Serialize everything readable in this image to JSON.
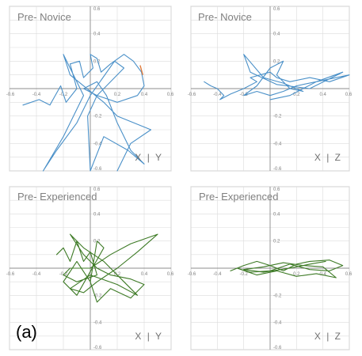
{
  "figure_label": "(a)",
  "colors": {
    "novice": "#4a90c8",
    "experienced": "#3d7a25",
    "novice_accent": "#e07a3a",
    "grid": "#dcdcdc",
    "axis": "#8c8c8c",
    "border": "#c8c8c8"
  },
  "chart_data": [
    {
      "type": "line",
      "title": "Pre- Novice",
      "plane_label": "X | Y",
      "xlim": [
        -0.6,
        0.6
      ],
      "ylim": [
        -0.6,
        0.6
      ],
      "xticks": [
        "-0.6",
        "-0.4",
        "-0.2",
        "0.2",
        "0.4",
        "0.6"
      ],
      "yticks": [
        "0.6",
        "0.4",
        "0.2",
        "-0.2",
        "-0.4",
        "-0.6"
      ],
      "grid": true,
      "series": [
        {
          "color": "#4a90c8",
          "points": [
            [
              -0.5,
              -0.12
            ],
            [
              -0.38,
              -0.08
            ],
            [
              -0.3,
              -0.12
            ],
            [
              -0.22,
              0.02
            ],
            [
              -0.18,
              -0.1
            ],
            [
              -0.1,
              0.0
            ],
            [
              -0.15,
              0.18
            ],
            [
              -0.08,
              0.2
            ],
            [
              -0.05,
              0.08
            ],
            [
              0.02,
              0.15
            ],
            [
              0.0,
              0.25
            ],
            [
              0.05,
              0.22
            ],
            [
              0.08,
              0.12
            ],
            [
              0.15,
              0.18
            ],
            [
              0.25,
              0.25
            ],
            [
              0.32,
              0.2
            ],
            [
              0.38,
              0.12
            ],
            [
              0.4,
              0.02
            ],
            [
              0.35,
              -0.05
            ],
            [
              0.2,
              -0.1
            ],
            [
              0.05,
              -0.05
            ],
            [
              -0.05,
              0.0
            ],
            [
              0.05,
              0.05
            ],
            [
              0.12,
              -0.05
            ],
            [
              0.2,
              -0.25
            ],
            [
              0.3,
              -0.45
            ],
            [
              0.4,
              -0.55
            ],
            [
              0.28,
              -0.45
            ],
            [
              0.1,
              -0.35
            ],
            [
              0.0,
              -0.6
            ],
            [
              -0.02,
              -0.2
            ],
            [
              0.05,
              -0.05
            ],
            [
              0.25,
              0.15
            ],
            [
              0.18,
              0.2
            ],
            [
              0.0,
              -0.05
            ],
            [
              -0.1,
              -0.25
            ],
            [
              -0.25,
              -0.45
            ],
            [
              -0.35,
              -0.6
            ],
            [
              -0.2,
              -0.35
            ],
            [
              -0.05,
              -0.05
            ],
            [
              -0.2,
              0.25
            ],
            [
              -0.15,
              0.1
            ],
            [
              0.1,
              -0.1
            ],
            [
              0.2,
              -0.2
            ],
            [
              0.45,
              -0.3
            ],
            [
              0.3,
              -0.4
            ],
            [
              0.2,
              -0.6
            ]
          ]
        }
      ]
    },
    {
      "type": "line",
      "title": "Pre- Novice",
      "plane_label": "X | Z",
      "xlim": [
        -0.6,
        0.6
      ],
      "ylim": [
        -0.6,
        0.6
      ],
      "xticks": [
        "-0.6",
        "-0.4",
        "-0.2",
        "0.2",
        "0.4",
        "0.6"
      ],
      "yticks": [
        "0.6",
        "0.4",
        "0.2",
        "-0.2",
        "-0.4",
        "-0.6"
      ],
      "grid": true,
      "series": [
        {
          "color": "#4a90c8",
          "points": [
            [
              -0.5,
              0.05
            ],
            [
              -0.45,
              0.02
            ],
            [
              -0.4,
              0.0
            ],
            [
              -0.35,
              -0.05
            ],
            [
              -0.38,
              -0.08
            ],
            [
              -0.3,
              -0.04
            ],
            [
              -0.2,
              0.0
            ],
            [
              -0.1,
              0.05
            ],
            [
              -0.15,
              0.08
            ],
            [
              0.0,
              0.12
            ],
            [
              0.05,
              0.08
            ],
            [
              0.15,
              0.05
            ],
            [
              0.3,
              0.08
            ],
            [
              0.45,
              0.05
            ],
            [
              0.6,
              0.1
            ],
            [
              0.4,
              0.06
            ],
            [
              0.2,
              0.02
            ],
            [
              0.1,
              -0.02
            ],
            [
              0.0,
              -0.05
            ],
            [
              -0.1,
              -0.02
            ],
            [
              -0.2,
              -0.05
            ],
            [
              -0.1,
              0.02
            ],
            [
              0.0,
              0.15
            ],
            [
              0.1,
              0.2
            ],
            [
              0.05,
              0.1
            ],
            [
              0.15,
              0.0
            ],
            [
              0.25,
              -0.02
            ],
            [
              0.1,
              0.04
            ],
            [
              -0.05,
              0.08
            ],
            [
              -0.2,
              0.25
            ],
            [
              -0.15,
              0.12
            ],
            [
              0.05,
              0.03
            ],
            [
              0.3,
              0.0
            ],
            [
              0.55,
              0.12
            ],
            [
              0.35,
              0.05
            ],
            [
              0.15,
              -0.05
            ],
            [
              0.0,
              -0.08
            ]
          ]
        }
      ]
    },
    {
      "type": "line",
      "title": "Pre- Experienced",
      "plane_label": "X | Y",
      "xlim": [
        -0.6,
        0.6
      ],
      "ylim": [
        -0.6,
        0.6
      ],
      "xticks": [
        "-0.6",
        "-0.4",
        "-0.2",
        "0.2",
        "0.4",
        "0.6"
      ],
      "yticks": [
        "0.6",
        "0.4",
        "0.2",
        "-0.2",
        "-0.4",
        "-0.6"
      ],
      "grid": true,
      "series": [
        {
          "color": "#3d7a25",
          "points": [
            [
              -0.25,
              0.1
            ],
            [
              -0.2,
              0.15
            ],
            [
              -0.15,
              0.05
            ],
            [
              -0.1,
              0.2
            ],
            [
              -0.05,
              0.05
            ],
            [
              0.0,
              0.12
            ],
            [
              0.05,
              -0.05
            ],
            [
              -0.1,
              -0.1
            ],
            [
              -0.2,
              -0.05
            ],
            [
              -0.15,
              0.0
            ],
            [
              0.0,
              0.0
            ],
            [
              0.15,
              0.1
            ],
            [
              0.3,
              0.18
            ],
            [
              0.5,
              0.25
            ],
            [
              0.35,
              0.12
            ],
            [
              0.2,
              0.0
            ],
            [
              0.05,
              -0.1
            ],
            [
              -0.05,
              -0.18
            ],
            [
              -0.15,
              -0.15
            ],
            [
              0.0,
              -0.05
            ],
            [
              0.2,
              -0.12
            ],
            [
              0.35,
              -0.2
            ],
            [
              0.25,
              -0.1
            ],
            [
              0.1,
              0.05
            ],
            [
              -0.05,
              0.15
            ],
            [
              -0.15,
              0.25
            ],
            [
              -0.05,
              0.1
            ],
            [
              0.05,
              0.0
            ],
            [
              0.15,
              -0.05
            ],
            [
              0.3,
              -0.08
            ],
            [
              0.4,
              -0.12
            ],
            [
              0.3,
              -0.22
            ],
            [
              0.15,
              -0.15
            ],
            [
              0.05,
              -0.25
            ],
            [
              0.0,
              -0.1
            ],
            [
              -0.1,
              0.05
            ],
            [
              -0.2,
              -0.1
            ],
            [
              -0.1,
              -0.2
            ],
            [
              0.1,
              0.15
            ],
            [
              0.05,
              0.2
            ],
            [
              0.0,
              -0.1
            ]
          ]
        }
      ]
    },
    {
      "type": "line",
      "title": "Pre- Experienced",
      "plane_label": "X | Z",
      "xlim": [
        -0.6,
        0.6
      ],
      "ylim": [
        -0.6,
        0.6
      ],
      "xticks": [
        "-0.6",
        "-0.4",
        "-0.2",
        "0.2",
        "0.4",
        "0.6"
      ],
      "yticks": [
        "0.6",
        "0.4",
        "0.2",
        "-0.2",
        "-0.4",
        "-0.6"
      ],
      "grid": true,
      "series": [
        {
          "color": "#3d7a25",
          "points": [
            [
              -0.3,
              -0.02
            ],
            [
              -0.2,
              0.02
            ],
            [
              -0.1,
              0.05
            ],
            [
              0.0,
              0.02
            ],
            [
              0.1,
              -0.02
            ],
            [
              0.2,
              0.03
            ],
            [
              0.3,
              0.05
            ],
            [
              0.45,
              0.06
            ],
            [
              0.55,
              0.02
            ],
            [
              0.45,
              -0.02
            ],
            [
              0.3,
              -0.01
            ],
            [
              0.15,
              0.03
            ],
            [
              0.0,
              -0.02
            ],
            [
              -0.15,
              -0.03
            ],
            [
              -0.25,
              0.0
            ],
            [
              -0.1,
              -0.05
            ],
            [
              0.05,
              -0.02
            ],
            [
              0.2,
              -0.06
            ],
            [
              0.35,
              -0.04
            ],
            [
              0.5,
              -0.07
            ],
            [
              0.4,
              0.01
            ],
            [
              0.25,
              0.02
            ],
            [
              0.1,
              0.04
            ],
            [
              -0.05,
              0.01
            ],
            [
              -0.2,
              -0.01
            ],
            [
              -0.05,
              -0.03
            ],
            [
              0.15,
              0.0
            ],
            [
              0.3,
              0.03
            ],
            [
              0.42,
              0.05
            ]
          ]
        }
      ]
    }
  ]
}
